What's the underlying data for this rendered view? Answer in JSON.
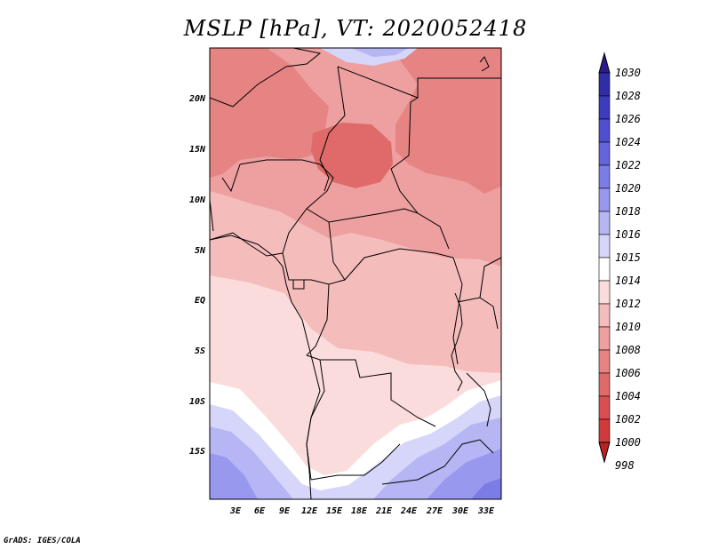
{
  "title": "MSLP [hPa], VT: 2020052418",
  "credit": "GrADS: IGES/COLA",
  "axes": {
    "y_labels": [
      "20N",
      "15N",
      "10N",
      "5N",
      "EQ",
      "5S",
      "10S",
      "15S"
    ],
    "x_labels": [
      "3E",
      "6E",
      "9E",
      "12E",
      "15E",
      "18E",
      "21E",
      "24E",
      "27E",
      "30E",
      "33E"
    ]
  },
  "colorbar": {
    "levels": [
      "1030",
      "1028",
      "1026",
      "1024",
      "1022",
      "1020",
      "1018",
      "1016",
      "1015",
      "1014",
      "1012",
      "1010",
      "1008",
      "1006",
      "1004",
      "1002",
      "1000",
      "998"
    ],
    "colors": [
      "#2a1a8c",
      "#2f2ea6",
      "#3c3cbe",
      "#4f4fd0",
      "#6464dc",
      "#7c7ce6",
      "#9898ee",
      "#b6b6f4",
      "#d6d6fa",
      "#ffffff",
      "#fbdcdc",
      "#f5bcbc",
      "#ee9f9f",
      "#e68484",
      "#e06a6a",
      "#d94f4f",
      "#cf3a3a",
      "#b82222"
    ]
  },
  "map_colors": {
    "lowest": "#e06a6a",
    "low": "#e68484",
    "midlow": "#ee9f9f",
    "mid": "#f5bcbc",
    "midhigh": "#fbdcdc",
    "neutral": "#ffffff",
    "high": "#d6d6fa",
    "higher": "#b6b6f4",
    "highest": "#9898ee",
    "top": "#7c7ce6"
  }
}
